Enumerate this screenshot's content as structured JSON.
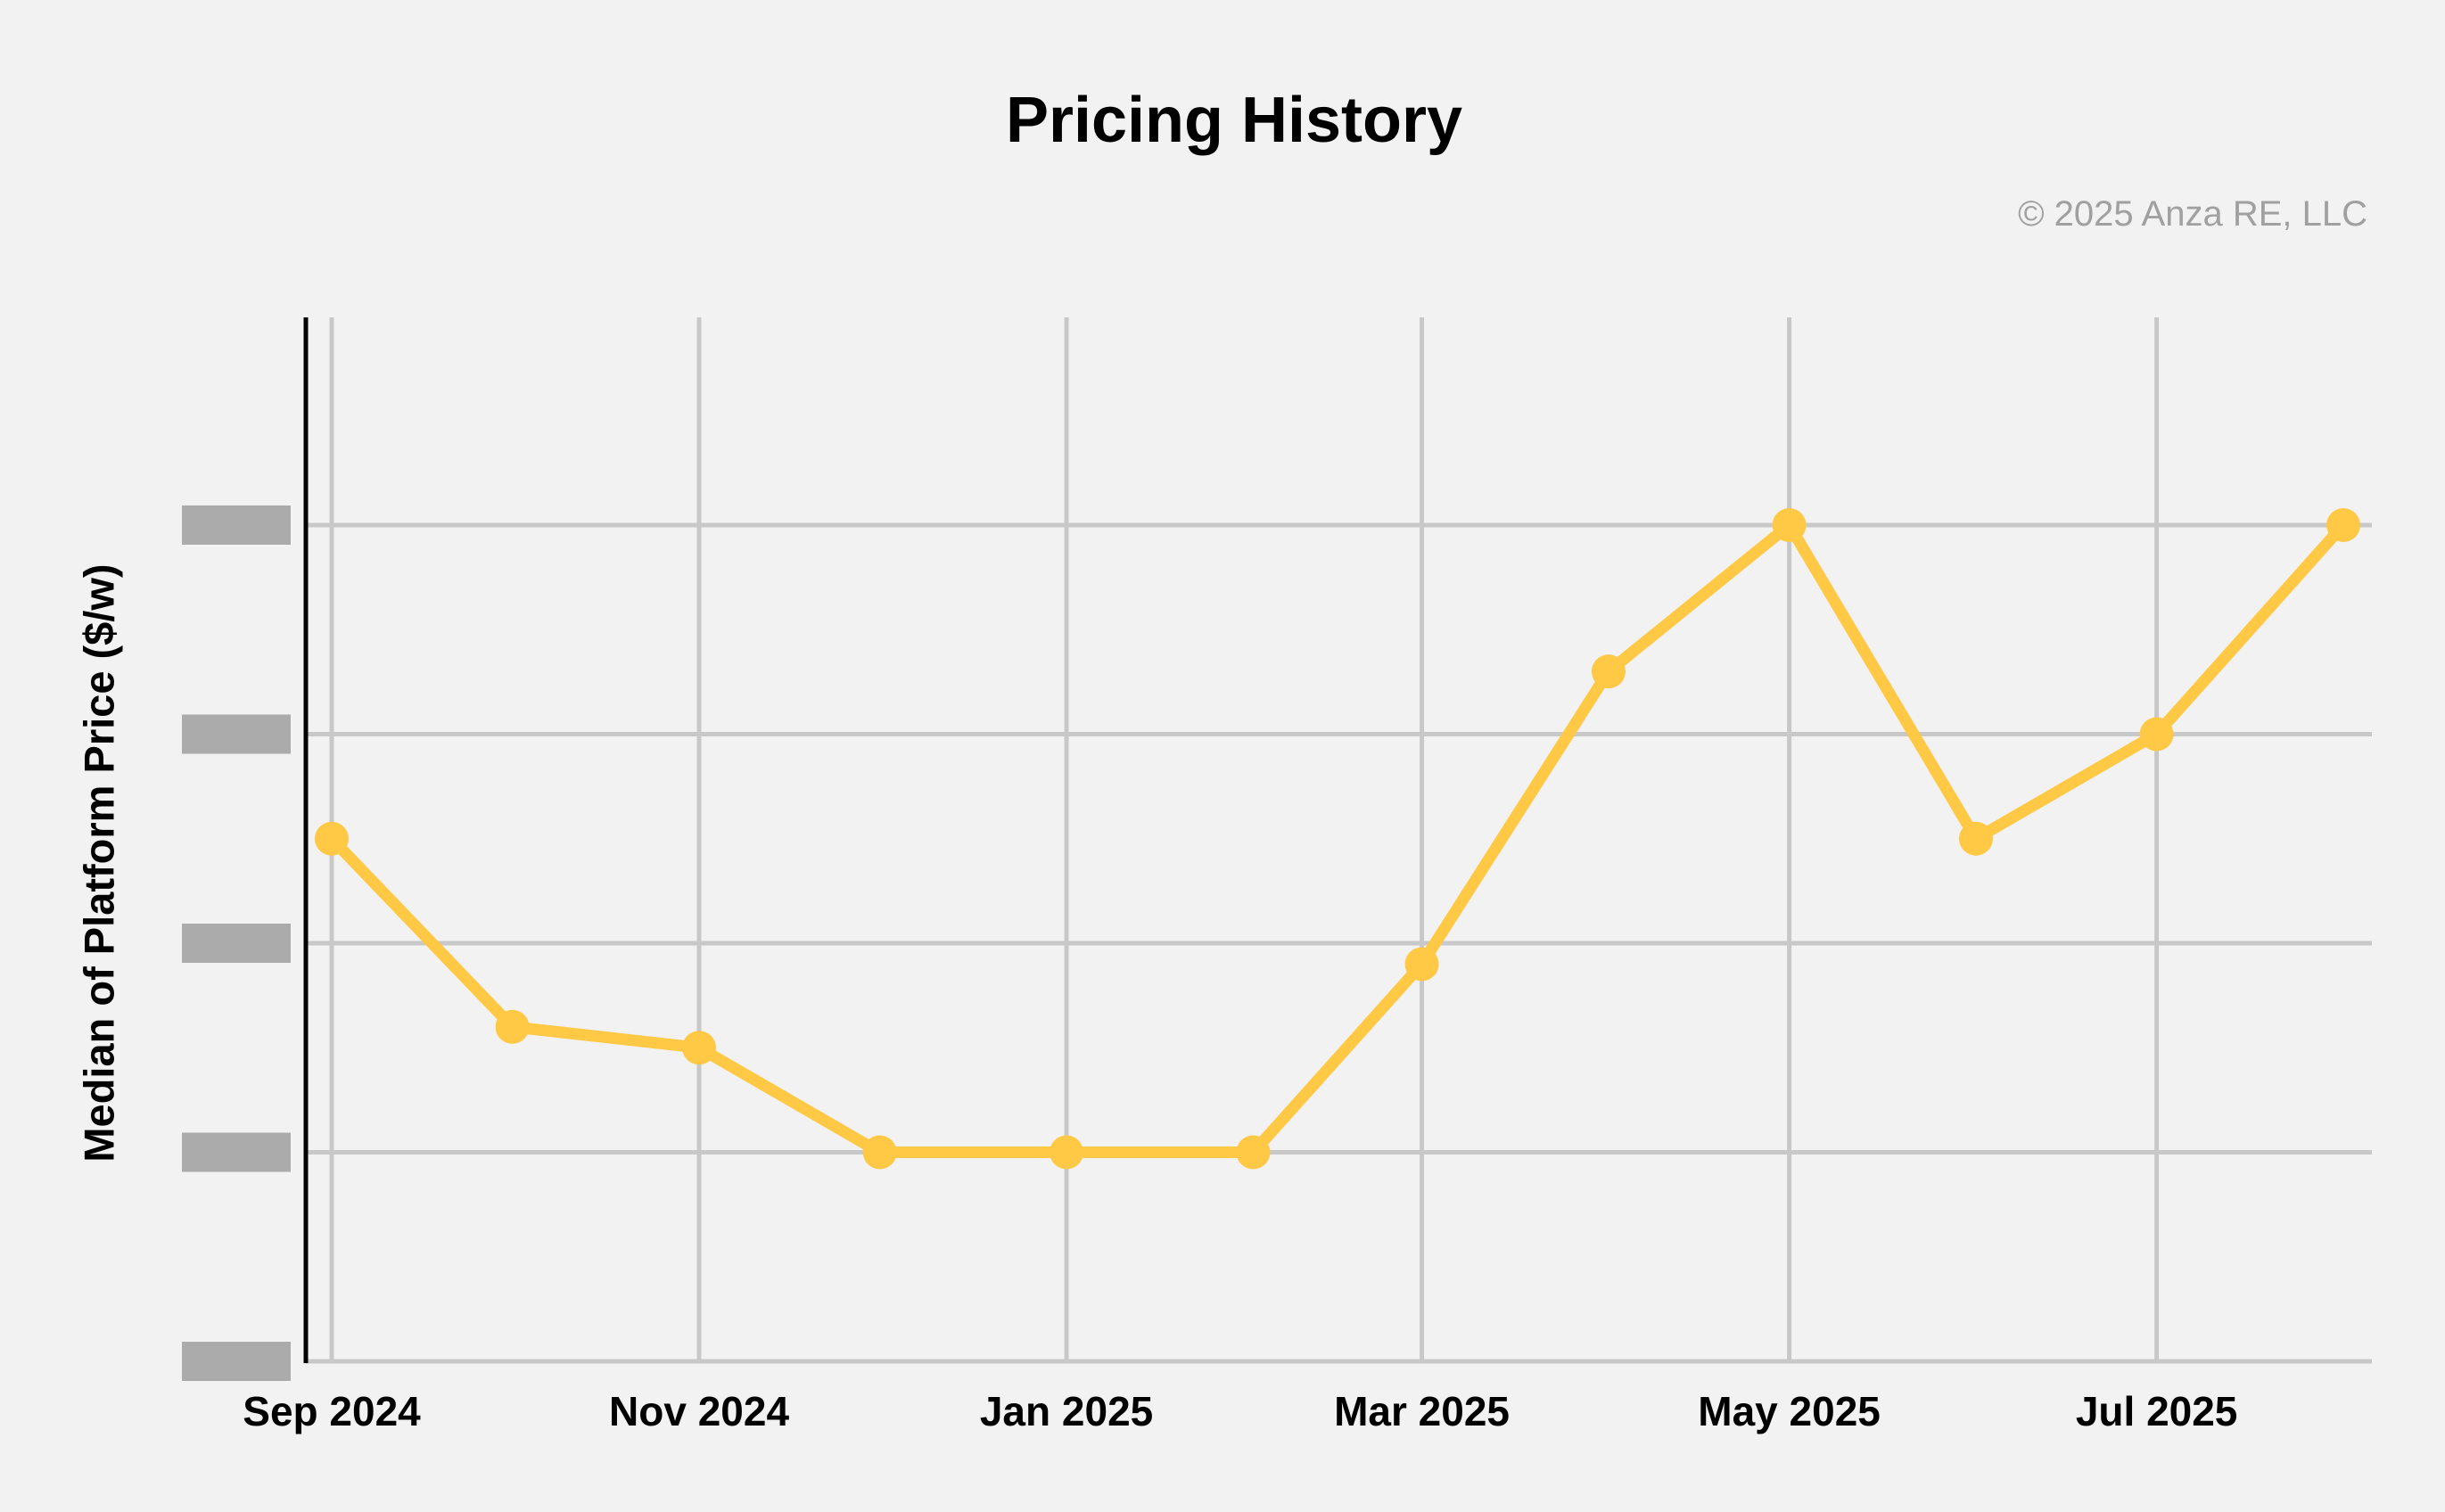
{
  "title": "Pricing History",
  "copyright": "© 2025 Anza RE, LLC",
  "y_axis": {
    "label": "Median of Platform Price ($/w)",
    "tick_labels_hidden": true,
    "tick_labels": [
      "redacted",
      "redacted",
      "redacted",
      "redacted",
      "redacted"
    ]
  },
  "x_axis": {
    "tick_labels": [
      "Sep 2024",
      "Nov 2024",
      "Jan 2025",
      "Mar 2025",
      "May 2025",
      "Jul 2025"
    ]
  },
  "colors": {
    "background": "#f2f2f2",
    "line": "#FFC845",
    "marker": "#FFC845",
    "grid": "#c8c8c8",
    "axis": "#000000",
    "redaction": "#ababab",
    "title_text": "#000000",
    "copyright_text": "#a0a0a0"
  },
  "chart_data": {
    "type": "line",
    "title": "Pricing History",
    "xlabel": "",
    "ylabel": "Median of Platform Price ($/w)",
    "x": [
      "2024-09-01",
      "2024-10-01",
      "2024-11-01",
      "2024-12-01",
      "2025-01-01",
      "2025-02-01",
      "2025-03-01",
      "2025-04-01",
      "2025-05-01",
      "2025-06-01",
      "2025-07-01",
      "2025-08-01"
    ],
    "series": [
      {
        "name": "Median of Platform Price ($/w)",
        "values": [
          2.5,
          1.6,
          1.5,
          1.0,
          1.0,
          1.0,
          1.9,
          3.3,
          4.0,
          2.5,
          3.0,
          4.0
        ]
      }
    ],
    "value_units": "relative gridline units; y tick labels are redacted with gray bars (0 = bottom gridline, 1 = one gridline spacing, top gridline = 4)",
    "ylim": [
      0,
      5
    ],
    "grid": true,
    "legend": "none",
    "marker": "circle",
    "x_tick_point_indices": [
      0,
      2,
      4,
      6,
      8,
      10
    ]
  }
}
